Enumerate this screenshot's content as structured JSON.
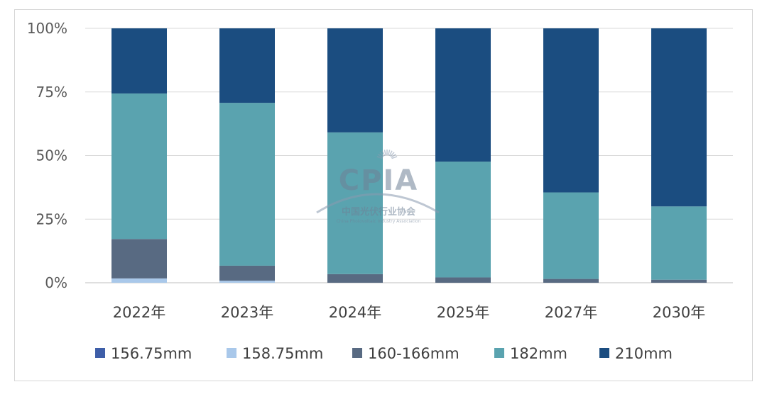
{
  "chart_data": {
    "type": "bar",
    "stacked": true,
    "normalized": true,
    "categories": [
      "2022年",
      "2023年",
      "2024年",
      "2025年",
      "2027年",
      "2030年"
    ],
    "series": [
      {
        "name": "156.75mm",
        "color": "#3e5ea8",
        "values": [
          0.0,
          0.0,
          0.0,
          0.0,
          0.0,
          0.0
        ]
      },
      {
        "name": "158.75mm",
        "color": "#a9c8ea",
        "values": [
          1.7,
          0.8,
          0.0,
          0.0,
          0.0,
          0.0
        ]
      },
      {
        "name": "160-166mm",
        "color": "#586a82",
        "values": [
          15.5,
          5.9,
          3.4,
          2.1,
          1.5,
          1.2
        ]
      },
      {
        "name": "182mm",
        "color": "#5aa3af",
        "values": [
          57.2,
          64.0,
          55.7,
          45.5,
          34.0,
          28.8
        ]
      },
      {
        "name": "210mm",
        "color": "#1b4d80",
        "values": [
          25.6,
          29.3,
          40.9,
          52.4,
          64.5,
          70.0
        ]
      }
    ],
    "yticks": [
      "0%",
      "25%",
      "50%",
      "75%",
      "100%"
    ],
    "ylim": [
      0,
      100
    ],
    "grid": true,
    "legend_position": "bottom",
    "watermark": {
      "logo": "CPIA",
      "org_cn": "中国光伏行业协会",
      "org_en": "China Photovoltaic Industry Association"
    }
  }
}
